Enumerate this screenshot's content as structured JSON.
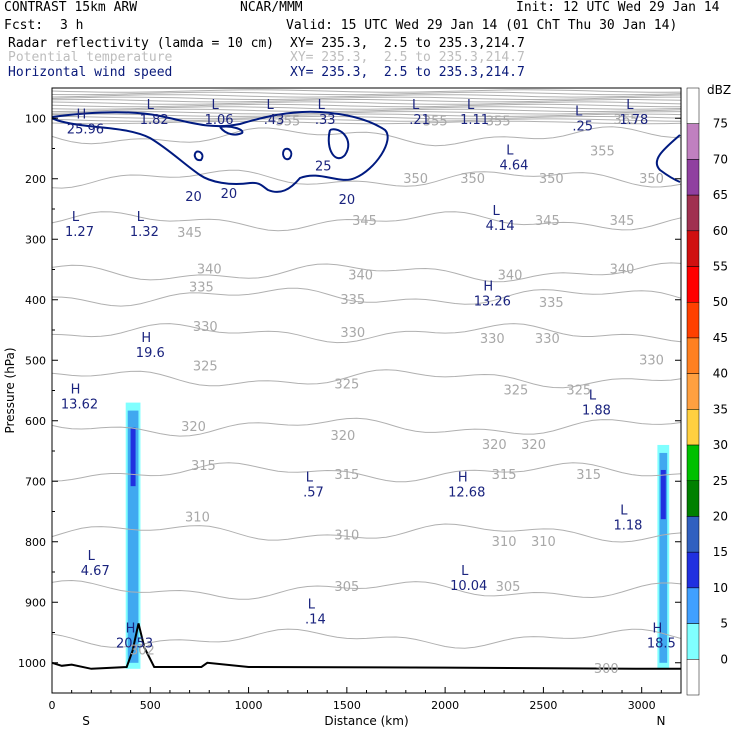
{
  "header": {
    "title_left": "CONTRAST 15km ARW",
    "title_center": "NCAR/MMM",
    "init": "Init: 12 UTC Wed 29 Jan 14",
    "fcst_label": "Fcst:",
    "fcst_value": "3 h",
    "valid": "Valid: 15 UTC Wed 29 Jan 14 (01 ChT Thu 30 Jan 14)",
    "field1_name": "Radar reflectivity (lamda = 10 cm)",
    "field1_xy": "XY= 235.3,  2.5 to 235.3,214.7",
    "field2_name": "Potential temperature",
    "field2_xy": "XY= 235.3,  2.5 to 235.3,214.7",
    "field3_name": "Horizontal wind speed",
    "field3_xy": "XY= 235.3,  2.5 to 235.3,214.7"
  },
  "colors": {
    "theta_contour": "#b0b0b0",
    "wind_contour": "#001a80",
    "wind_label": "#1a237e",
    "terrain": "#000000"
  },
  "chart_data": {
    "type": "contour",
    "xlabel": "Distance (km)",
    "ylabel": "Pressure (hPa)",
    "xlim": [
      0,
      3200
    ],
    "ylim": [
      1050,
      50
    ],
    "x_ticks": [
      "0",
      "500",
      "1000",
      "1500",
      "2000",
      "2500",
      "3000"
    ],
    "y_ticks": [
      "100",
      "200",
      "300",
      "400",
      "500",
      "600",
      "700",
      "800",
      "900",
      "1000"
    ],
    "end_labels": {
      "left": "S",
      "right": "N"
    },
    "theta_labels": [
      {
        "t": "355",
        "x": 1200,
        "p": 105
      },
      {
        "t": "355",
        "x": 1950,
        "p": 105
      },
      {
        "t": "355",
        "x": 2270,
        "p": 105
      },
      {
        "t": "365",
        "x": 2920,
        "p": 103
      },
      {
        "t": "355",
        "x": 2800,
        "p": 155
      },
      {
        "t": "350",
        "x": 1850,
        "p": 200
      },
      {
        "t": "350",
        "x": 2140,
        "p": 200
      },
      {
        "t": "350",
        "x": 2540,
        "p": 200
      },
      {
        "t": "350",
        "x": 3050,
        "p": 200
      },
      {
        "t": "345",
        "x": 700,
        "p": 290
      },
      {
        "t": "345",
        "x": 1590,
        "p": 270
      },
      {
        "t": "345",
        "x": 2520,
        "p": 270
      },
      {
        "t": "345",
        "x": 2900,
        "p": 270
      },
      {
        "t": "340",
        "x": 800,
        "p": 350
      },
      {
        "t": "340",
        "x": 1570,
        "p": 360
      },
      {
        "t": "340",
        "x": 2330,
        "p": 360
      },
      {
        "t": "340",
        "x": 2900,
        "p": 350
      },
      {
        "t": "335",
        "x": 760,
        "p": 380
      },
      {
        "t": "335",
        "x": 1530,
        "p": 400
      },
      {
        "t": "335",
        "x": 2540,
        "p": 405
      },
      {
        "t": "330",
        "x": 780,
        "p": 445
      },
      {
        "t": "330",
        "x": 1530,
        "p": 455
      },
      {
        "t": "330",
        "x": 2240,
        "p": 465
      },
      {
        "t": "330",
        "x": 2520,
        "p": 465
      },
      {
        "t": "330",
        "x": 3050,
        "p": 500
      },
      {
        "t": "325",
        "x": 780,
        "p": 510
      },
      {
        "t": "325",
        "x": 1500,
        "p": 540
      },
      {
        "t": "325",
        "x": 2360,
        "p": 550
      },
      {
        "t": "325",
        "x": 2680,
        "p": 550
      },
      {
        "t": "320",
        "x": 720,
        "p": 610
      },
      {
        "t": "320",
        "x": 1480,
        "p": 625
      },
      {
        "t": "320",
        "x": 2250,
        "p": 640
      },
      {
        "t": "320",
        "x": 2450,
        "p": 640
      },
      {
        "t": "315",
        "x": 770,
        "p": 675
      },
      {
        "t": "315",
        "x": 1500,
        "p": 690
      },
      {
        "t": "315",
        "x": 2300,
        "p": 690
      },
      {
        "t": "315",
        "x": 2730,
        "p": 690
      },
      {
        "t": "310",
        "x": 740,
        "p": 760
      },
      {
        "t": "310",
        "x": 1500,
        "p": 790
      },
      {
        "t": "310",
        "x": 2300,
        "p": 800
      },
      {
        "t": "310",
        "x": 2500,
        "p": 800
      },
      {
        "t": "305",
        "x": 1500,
        "p": 875
      },
      {
        "t": "305",
        "x": 2320,
        "p": 875
      },
      {
        "t": "300",
        "x": 2820,
        "p": 1010
      },
      {
        "t": "302",
        "x": 460,
        "p": 980
      }
    ],
    "extrema": [
      {
        "k": "H",
        "v": "25.96",
        "x": 170,
        "p": 105
      },
      {
        "k": "L",
        "v": "1.82",
        "x": 520,
        "p": 90
      },
      {
        "k": "L",
        "v": "1.06",
        "x": 850,
        "p": 90
      },
      {
        "k": "L",
        "v": ".43",
        "x": 1130,
        "p": 90
      },
      {
        "k": "L",
        "v": ".33",
        "x": 1390,
        "p": 90
      },
      {
        "k": "L",
        "v": ".21",
        "x": 1870,
        "p": 90
      },
      {
        "k": "L",
        "v": "1.11",
        "x": 2150,
        "p": 90
      },
      {
        "k": "L",
        "v": ".25",
        "x": 2700,
        "p": 100
      },
      {
        "k": "L",
        "v": "1.78",
        "x": 2960,
        "p": 90
      },
      {
        "k": "L",
        "v": "4.64",
        "x": 2350,
        "p": 165
      },
      {
        "k": "L",
        "v": "4.14",
        "x": 2280,
        "p": 265
      },
      {
        "k": "L",
        "v": "1.27",
        "x": 140,
        "p": 275
      },
      {
        "k": "L",
        "v": "1.32",
        "x": 470,
        "p": 275
      },
      {
        "k": "H",
        "v": "13.26",
        "x": 2240,
        "p": 390
      },
      {
        "k": "H",
        "v": "19.6",
        "x": 500,
        "p": 475
      },
      {
        "k": "H",
        "v": "13.62",
        "x": 140,
        "p": 560
      },
      {
        "k": "L",
        "v": "1.88",
        "x": 2770,
        "p": 570
      },
      {
        "k": "L",
        "v": ".57",
        "x": 1330,
        "p": 705
      },
      {
        "k": "H",
        "v": "12.68",
        "x": 2110,
        "p": 705
      },
      {
        "k": "L",
        "v": "1.18",
        "x": 2930,
        "p": 760
      },
      {
        "k": "L",
        "v": "4.67",
        "x": 220,
        "p": 835
      },
      {
        "k": "L",
        "v": "10.04",
        "x": 2120,
        "p": 860
      },
      {
        "k": "L",
        "v": ".14",
        "x": 1340,
        "p": 915
      },
      {
        "k": "H",
        "v": "20.53",
        "x": 420,
        "p": 955
      },
      {
        "k": "H",
        "v": "18.5",
        "x": 3100,
        "p": 955
      }
    ],
    "wind_contour_labels": [
      {
        "t": "25",
        "x": 1380,
        "p": 180
      },
      {
        "t": "20",
        "x": 720,
        "p": 230
      },
      {
        "t": "20",
        "x": 900,
        "p": 225
      },
      {
        "t": "20",
        "x": 1500,
        "p": 235
      }
    ],
    "reflectivity_cells": [
      {
        "x0": 375,
        "x1": 450,
        "p_top": 570,
        "p_bot": 1010
      },
      {
        "x0": 3080,
        "x1": 3140,
        "p_top": 640,
        "p_bot": 1010
      }
    ],
    "terrain": {
      "x": [
        0,
        50,
        100,
        200,
        380,
        410,
        440,
        470,
        520,
        760,
        790,
        1000,
        2000,
        3000,
        3200
      ],
      "p": [
        1000,
        1005,
        1003,
        1010,
        1007,
        980,
        935,
        975,
        1007,
        1007,
        1000,
        1007,
        1008,
        1010,
        1010
      ]
    },
    "colorbar": {
      "title": "dBZ",
      "labels": [
        "75",
        "70",
        "65",
        "60",
        "55",
        "50",
        "45",
        "40",
        "35",
        "30",
        "25",
        "20",
        "15",
        "10",
        "5",
        "0"
      ],
      "colors": [
        "#ffffff",
        "#c080c0",
        "#9040a0",
        "#a03050",
        "#d01010",
        "#ff0000",
        "#ff4000",
        "#ff8020",
        "#ffa040",
        "#ffd040",
        "#00c000",
        "#008000",
        "#3060c0",
        "#2030e0",
        "#40a0ff",
        "#80ffff",
        "#ffffff"
      ]
    }
  }
}
